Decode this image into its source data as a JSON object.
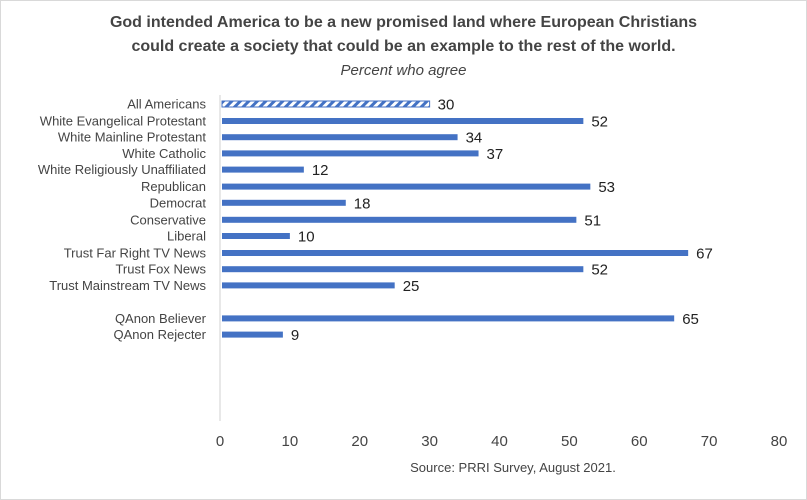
{
  "chart_data": {
    "type": "bar",
    "orientation": "horizontal",
    "title": "God intended America to be a new promised land where European Christians could create a society that could be an example to the rest of the world.",
    "title_lines": [
      "God intended America to be a new promised land where European Christians",
      "could create a society that could be an example to the rest of the world."
    ],
    "subtitle": "Percent who agree",
    "source": "Source: PRRI Survey, August 2021.",
    "xlabel": "",
    "ylabel": "",
    "xlim": [
      0,
      80
    ],
    "xticks": [
      0,
      10,
      20,
      30,
      40,
      50,
      60,
      70,
      80
    ],
    "grid": false,
    "legend": "none",
    "bar_color": "#4472C4",
    "highlight_pattern": "hatched",
    "categories": [
      "All Americans",
      "White Evangelical Protestant",
      "White Mainline Protestant",
      "White Catholic",
      "White Religiously Unaffiliated",
      "Republican",
      "Democrat",
      "Conservative",
      "Liberal",
      "Trust Far Right TV News",
      "Trust Fox News",
      "Trust Mainstream TV News",
      "QAnon Believer",
      "QAnon Rejecter"
    ],
    "values": [
      30,
      52,
      34,
      37,
      12,
      53,
      18,
      51,
      10,
      67,
      52,
      25,
      65,
      9
    ],
    "hatched": [
      true,
      false,
      false,
      false,
      false,
      false,
      false,
      false,
      false,
      false,
      false,
      false,
      false,
      false
    ],
    "groups": [
      [
        "All Americans"
      ],
      [
        "White Evangelical Protestant",
        "White Mainline Protestant",
        "White Catholic",
        "White Religiously Unaffiliated"
      ],
      [
        "Republican",
        "Democrat"
      ],
      [
        "Conservative",
        "Liberal"
      ],
      [
        "Trust Far Right TV News",
        "Trust Fox News",
        "Trust Mainstream TV News"
      ],
      [
        "QAnon Believer",
        "QAnon Rejecter"
      ]
    ]
  }
}
